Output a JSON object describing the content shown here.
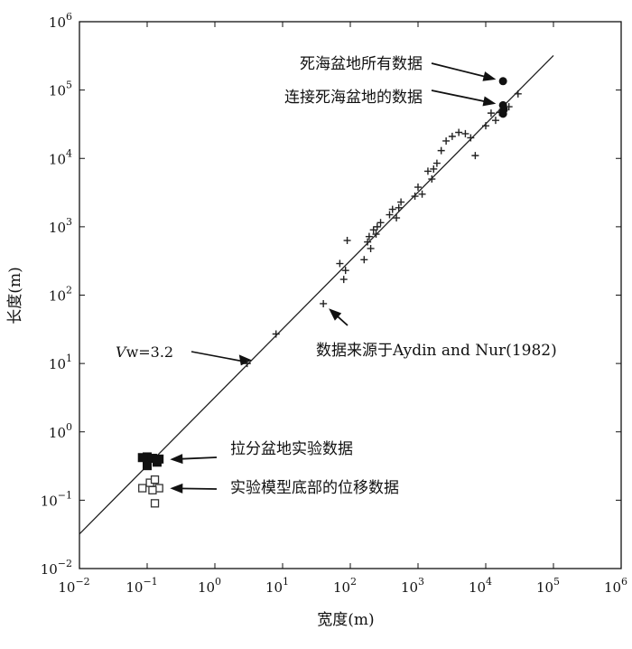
{
  "chart_data": {
    "type": "scatter",
    "xscale": "log",
    "yscale": "log",
    "xlim": [
      0.01,
      1000000
    ],
    "ylim": [
      0.01,
      1000000
    ],
    "x_ticks": [
      {
        "base": "10",
        "exp": "−2"
      },
      {
        "base": "10",
        "exp": "−1"
      },
      {
        "base": "10",
        "exp": "0"
      },
      {
        "base": "10",
        "exp": "1"
      },
      {
        "base": "10",
        "exp": "2"
      },
      {
        "base": "10",
        "exp": "3"
      },
      {
        "base": "10",
        "exp": "4"
      },
      {
        "base": "10",
        "exp": "5"
      },
      {
        "base": "10",
        "exp": "6"
      }
    ],
    "y_ticks": [
      {
        "base": "10",
        "exp": "−2"
      },
      {
        "base": "10",
        "exp": "−1"
      },
      {
        "base": "10",
        "exp": "0"
      },
      {
        "base": "10",
        "exp": "1"
      },
      {
        "base": "10",
        "exp": "2"
      },
      {
        "base": "10",
        "exp": "3"
      },
      {
        "base": "10",
        "exp": "4"
      },
      {
        "base": "10",
        "exp": "5"
      },
      {
        "base": "10",
        "exp": "6"
      }
    ],
    "xlabel": "宽度(m)",
    "ylabel": "长度(m)",
    "grid": false,
    "fit_line": {
      "label_prefix": "V",
      "label_rest": "w=3.2",
      "slope": 1,
      "factor": 3.2,
      "x_range": [
        0.01,
        100000
      ]
    },
    "series": [
      {
        "marker": "plus",
        "points": [
          [
            3,
            10
          ],
          [
            8,
            27
          ],
          [
            40,
            75
          ],
          [
            70,
            290
          ],
          [
            85,
            230
          ],
          [
            80,
            170
          ],
          [
            90,
            630
          ],
          [
            160,
            330
          ],
          [
            180,
            600
          ],
          [
            190,
            720
          ],
          [
            200,
            480
          ],
          [
            220,
            900
          ],
          [
            240,
            780
          ],
          [
            250,
            1000
          ],
          [
            280,
            1150
          ],
          [
            380,
            1500
          ],
          [
            420,
            1800
          ],
          [
            480,
            1350
          ],
          [
            520,
            1900
          ],
          [
            560,
            2300
          ],
          [
            900,
            2800
          ],
          [
            1000,
            3800
          ],
          [
            1150,
            3000
          ],
          [
            1400,
            6500
          ],
          [
            1600,
            5000
          ],
          [
            1700,
            7000
          ],
          [
            1900,
            8500
          ],
          [
            2200,
            13000
          ],
          [
            2600,
            18000
          ],
          [
            3200,
            21000
          ],
          [
            4000,
            24000
          ],
          [
            5000,
            23000
          ],
          [
            6000,
            20000
          ],
          [
            7000,
            11000
          ],
          [
            10000,
            30000
          ],
          [
            12000,
            46000
          ],
          [
            14000,
            36000
          ],
          [
            16000,
            47000
          ],
          [
            22000,
            57000
          ],
          [
            30000,
            88000
          ]
        ]
      },
      {
        "marker": "dot",
        "points": [
          [
            18000,
            135000
          ],
          [
            18000,
            60000
          ],
          [
            18500,
            52000
          ],
          [
            18000,
            45000
          ]
        ]
      },
      {
        "marker": "filled-square",
        "points": [
          [
            0.085,
            0.42
          ],
          [
            0.1,
            0.43
          ],
          [
            0.12,
            0.41
          ],
          [
            0.1,
            0.32
          ],
          [
            0.14,
            0.36
          ],
          [
            0.15,
            0.4
          ]
        ]
      },
      {
        "marker": "open-square",
        "points": [
          [
            0.085,
            0.15
          ],
          [
            0.11,
            0.18
          ],
          [
            0.13,
            0.2
          ],
          [
            0.15,
            0.15
          ],
          [
            0.13,
            0.09
          ],
          [
            0.12,
            0.14
          ]
        ]
      }
    ],
    "annotations": [
      {
        "text": "死海盆地所有数据",
        "target": [
          18000,
          135000
        ]
      },
      {
        "text": "连接死海盆地的数据",
        "target": [
          18000,
          60000
        ]
      },
      {
        "text": "数据来源于Aydin and Nur(1982)",
        "target": [
          40,
          75
        ]
      },
      {
        "text": "拉分盆地实验数据",
        "target": [
          0.16,
          0.39
        ]
      },
      {
        "text": "实验模型底部的位移数据",
        "target": [
          0.16,
          0.15
        ]
      }
    ]
  }
}
